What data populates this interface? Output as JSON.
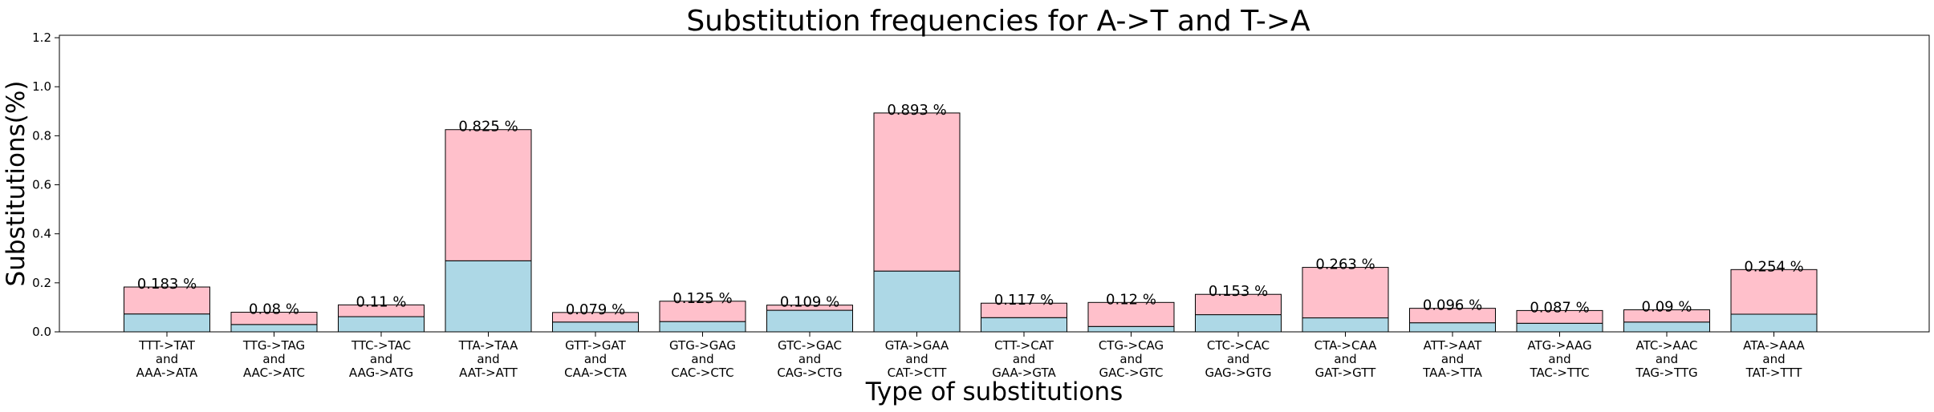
{
  "chart_data": {
    "type": "bar",
    "stacked": true,
    "title": "Substitution frequencies for A->T and T->A",
    "xlabel": "Type of substitutions",
    "ylabel": "Substitutions(%)",
    "ylim": [
      0,
      1.21
    ],
    "yticks": [
      "0.0",
      "0.2",
      "0.4",
      "0.6",
      "0.8",
      "1.0",
      "1.2"
    ],
    "grid": false,
    "categories": [
      [
        "TTT->TAT",
        "and",
        "AAA->ATA"
      ],
      [
        "TTG->TAG",
        "and",
        "AAC->ATC"
      ],
      [
        "TTC->TAC",
        "and",
        "AAG->ATG"
      ],
      [
        "TTA->TAA",
        "and",
        "AAT->ATT"
      ],
      [
        "GTT->GAT",
        "and",
        "CAA->CTA"
      ],
      [
        "GTG->GAG",
        "and",
        "CAC->CTC"
      ],
      [
        "GTC->GAC",
        "and",
        "CAG->CTG"
      ],
      [
        "GTA->GAA",
        "and",
        "CAT->CTT"
      ],
      [
        "CTT->CAT",
        "and",
        "GAA->GTA"
      ],
      [
        "CTG->CAG",
        "and",
        "GAC->GTC"
      ],
      [
        "CTC->CAC",
        "and",
        "GAG->GTG"
      ],
      [
        "CTA->CAA",
        "and",
        "GAT->GTT"
      ],
      [
        "ATT->AAT",
        "and",
        "TAA->TTA"
      ],
      [
        "ATG->AAG",
        "and",
        "TAC->TTC"
      ],
      [
        "ATC->AAC",
        "and",
        "TAG->TTG"
      ],
      [
        "ATA->AAA",
        "and",
        "TAT->TTT"
      ]
    ],
    "series": [
      {
        "color": "#add8e6",
        "values": [
          0.073,
          0.03,
          0.062,
          0.29,
          0.04,
          0.042,
          0.088,
          0.248,
          0.058,
          0.022,
          0.07,
          0.057,
          0.037,
          0.035,
          0.04,
          0.072
        ]
      },
      {
        "color": "#ffc0cb",
        "values": [
          0.11,
          0.05,
          0.048,
          0.535,
          0.039,
          0.083,
          0.021,
          0.645,
          0.059,
          0.098,
          0.083,
          0.206,
          0.059,
          0.052,
          0.05,
          0.182
        ]
      }
    ],
    "totals": [
      0.183,
      0.08,
      0.11,
      0.825,
      0.079,
      0.125,
      0.109,
      0.893,
      0.117,
      0.12,
      0.153,
      0.263,
      0.096,
      0.087,
      0.09,
      0.254
    ],
    "data_labels": [
      "0.183 %",
      "0.08 %",
      "0.11 %",
      "0.825 %",
      "0.079 %",
      "0.125 %",
      "0.109 %",
      "0.893 %",
      "0.117 %",
      "0.12 %",
      "0.153 %",
      "0.263 %",
      "0.096 %",
      "0.087 %",
      "0.09 %",
      "0.254 %"
    ]
  }
}
